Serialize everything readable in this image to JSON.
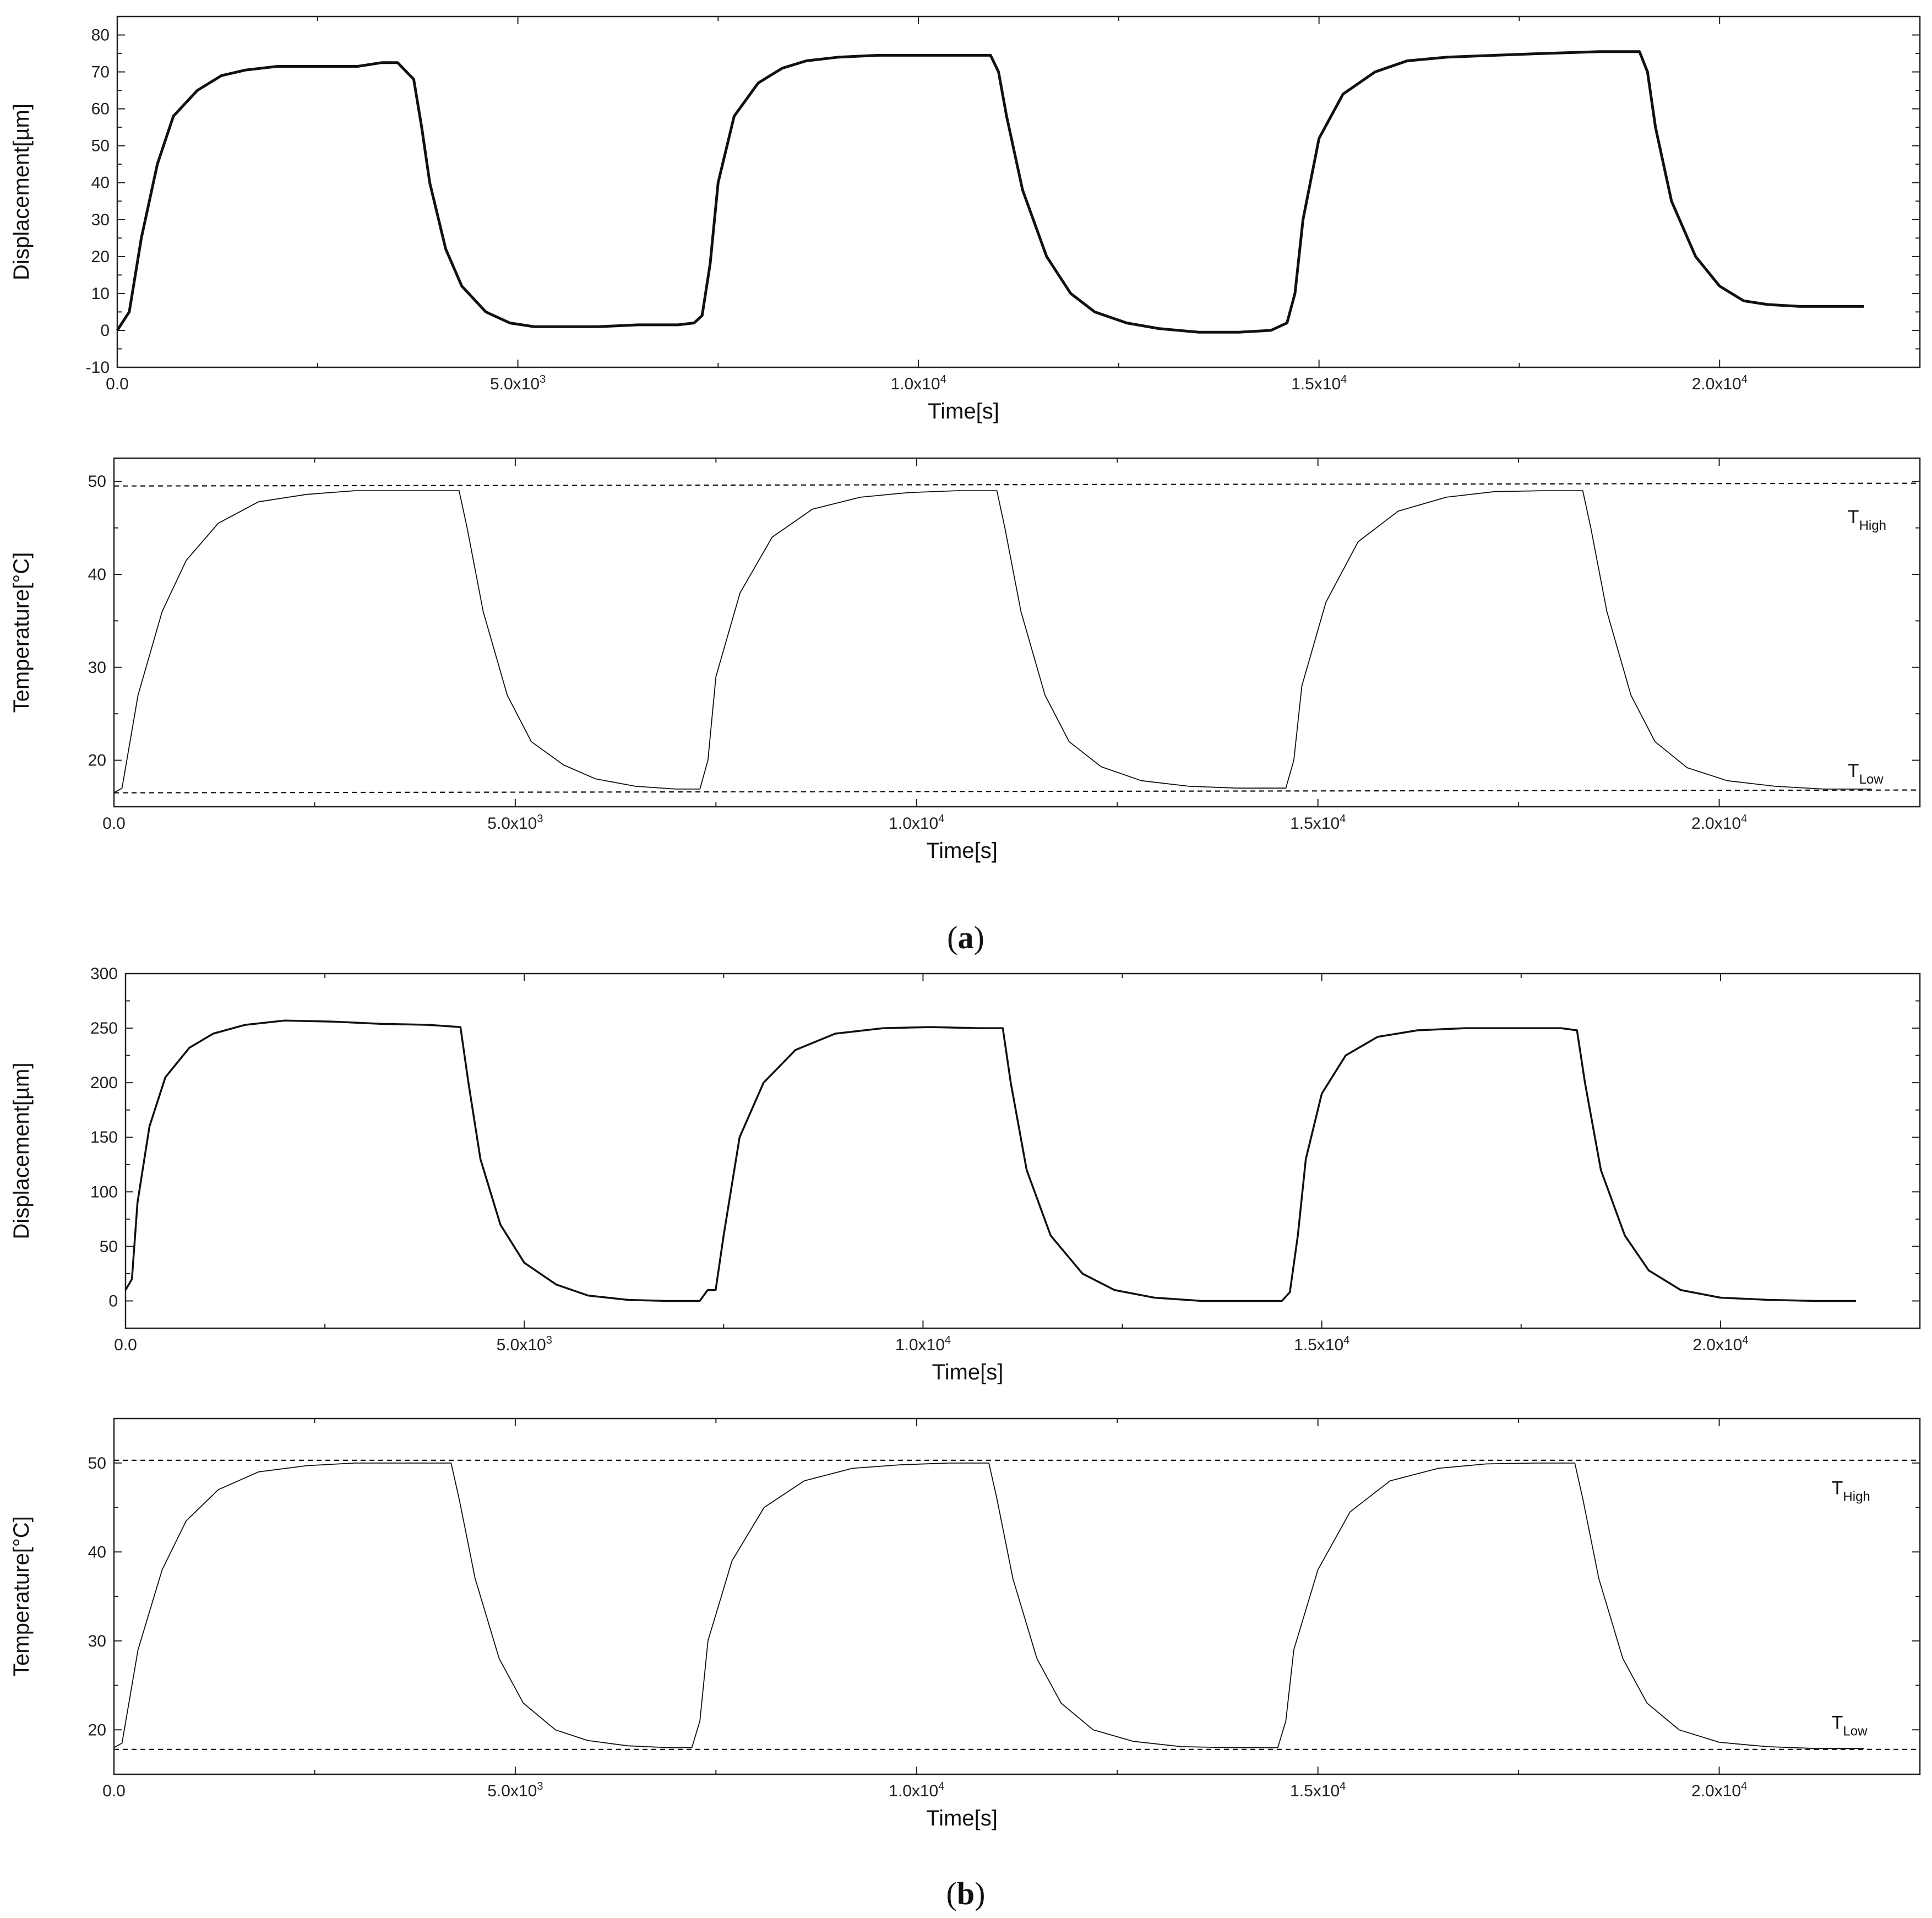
{
  "panel_labels": {
    "a_prefix": "(",
    "a_letter": "a",
    "a_suffix": ")",
    "b_prefix": "(",
    "b_letter": "b",
    "b_suffix": ")"
  },
  "colors": {
    "line": "#111111",
    "axis": "#222222",
    "background": "#ffffff"
  },
  "chart_data": [
    {
      "id": "a-displacement",
      "type": "line",
      "xlabel": "Time[s]",
      "ylabel": "Displacement[µm]",
      "xlim": [
        0,
        22500
      ],
      "ylim": [
        -10,
        85
      ],
      "xticks": [
        0,
        5000,
        10000,
        15000,
        20000
      ],
      "xtick_labels": [
        {
          "base": "0.0",
          "exp": ""
        },
        {
          "base": "5.0x10",
          "exp": "3"
        },
        {
          "base": "1.0x10",
          "exp": "4"
        },
        {
          "base": "1.5x10",
          "exp": "4"
        },
        {
          "base": "2.0x10",
          "exp": "4"
        }
      ],
      "yticks": [
        -10,
        0,
        10,
        20,
        30,
        40,
        50,
        60,
        70,
        80
      ],
      "ytick_labels": [
        "-10",
        "0",
        "10",
        "20",
        "30",
        "40",
        "50",
        "60",
        "70",
        "80"
      ],
      "grid": false,
      "series": [
        {
          "style": "solid-thick",
          "x": [
            0,
            150,
            300,
            500,
            700,
            1000,
            1300,
            1600,
            2000,
            2500,
            3000,
            3300,
            3500,
            3700,
            3800,
            3900,
            4100,
            4300,
            4600,
            4900,
            5200,
            5600,
            6000,
            6500,
            7000,
            7200,
            7300,
            7400,
            7500,
            7700,
            8000,
            8300,
            8600,
            9000,
            9500,
            10000,
            10500,
            10900,
            11000,
            11100,
            11300,
            11600,
            11900,
            12200,
            12600,
            13000,
            13500,
            14000,
            14400,
            14600,
            14700,
            14800,
            15000,
            15300,
            15700,
            16100,
            16600,
            17200,
            17800,
            18500,
            19000,
            19100,
            19200,
            19400,
            19700,
            20000,
            20300,
            20600,
            21000,
            21500,
            21800
          ],
          "y": [
            0,
            5,
            25,
            45,
            58,
            65,
            69,
            70.5,
            71.5,
            71.5,
            71.5,
            72.5,
            72.5,
            68,
            55,
            40,
            22,
            12,
            5,
            2,
            1,
            1,
            1,
            1.5,
            1.5,
            2,
            4,
            18,
            40,
            58,
            67,
            71,
            73,
            74,
            74.5,
            74.5,
            74.5,
            74.5,
            70,
            58,
            38,
            20,
            10,
            5,
            2,
            0.5,
            -0.5,
            -0.5,
            0,
            2,
            10,
            30,
            52,
            64,
            70,
            73,
            74,
            74.5,
            75,
            75.5,
            75.5,
            70,
            55,
            35,
            20,
            12,
            8,
            7,
            6.5,
            6.5,
            6.5
          ]
        }
      ]
    },
    {
      "id": "a-temperature",
      "type": "line",
      "xlabel": "Time[s]",
      "ylabel": "Temperature[°C]",
      "xlim": [
        0,
        22500
      ],
      "ylim": [
        15,
        52.5
      ],
      "xticks": [
        0,
        5000,
        10000,
        15000,
        20000
      ],
      "xtick_labels": [
        {
          "base": "0.0",
          "exp": ""
        },
        {
          "base": "5.0x10",
          "exp": "3"
        },
        {
          "base": "1.0x10",
          "exp": "4"
        },
        {
          "base": "1.5x10",
          "exp": "4"
        },
        {
          "base": "2.0x10",
          "exp": "4"
        }
      ],
      "yticks": [
        20,
        30,
        40,
        50
      ],
      "ytick_labels": [
        "20",
        "30",
        "40",
        "50"
      ],
      "grid": false,
      "series": [
        {
          "style": "solid-thin",
          "x": [
            0,
            100,
            300,
            600,
            900,
            1300,
            1800,
            2400,
            3000,
            3600,
            4300,
            4400,
            4600,
            4900,
            5200,
            5600,
            6000,
            6500,
            7000,
            7300,
            7400,
            7500,
            7800,
            8200,
            8700,
            9300,
            9900,
            10500,
            11000,
            11100,
            11300,
            11600,
            11900,
            12300,
            12800,
            13400,
            14000,
            14600,
            14700,
            14800,
            15100,
            15500,
            16000,
            16600,
            17200,
            17800,
            18300,
            18400,
            18600,
            18900,
            19200,
            19600,
            20100,
            20700,
            21300,
            21900
          ],
          "y": [
            16.5,
            17,
            27,
            36,
            41.5,
            45.5,
            47.8,
            48.6,
            49,
            49,
            49,
            45,
            36,
            27,
            22,
            19.5,
            18,
            17.2,
            16.9,
            16.9,
            20,
            29,
            38,
            44,
            47,
            48.3,
            48.8,
            49,
            49,
            45,
            36,
            27,
            22,
            19.3,
            17.8,
            17.2,
            17,
            17,
            20,
            28,
            37,
            43.5,
            46.8,
            48.3,
            48.9,
            49,
            49,
            45,
            36,
            27,
            22,
            19.2,
            17.8,
            17.2,
            16.9,
            16.9
          ]
        },
        {
          "style": "dashed",
          "x": [
            0,
            22500
          ],
          "y": [
            49.5,
            49.8
          ]
        },
        {
          "style": "dashed",
          "x": [
            0,
            22500
          ],
          "y": [
            16.5,
            16.8
          ]
        }
      ],
      "annotations": [
        {
          "main": "T",
          "sub": "High",
          "x": 21600,
          "y": 45.5
        },
        {
          "main": "T",
          "sub": "Low",
          "x": 21600,
          "y": 18.2
        }
      ]
    },
    {
      "id": "b-displacement",
      "type": "line",
      "xlabel": "Time[s]",
      "ylabel": "Displacement[µm]",
      "xlim": [
        0,
        22500
      ],
      "ylim": [
        -25,
        300
      ],
      "xticks": [
        0,
        5000,
        10000,
        15000,
        20000
      ],
      "xtick_labels": [
        {
          "base": "0.0",
          "exp": ""
        },
        {
          "base": "5.0x10",
          "exp": "3"
        },
        {
          "base": "1.0x10",
          "exp": "4"
        },
        {
          "base": "1.5x10",
          "exp": "4"
        },
        {
          "base": "2.0x10",
          "exp": "4"
        }
      ],
      "yticks": [
        0,
        50,
        100,
        150,
        200,
        250,
        300
      ],
      "ytick_labels": [
        "0",
        "50",
        "100",
        "150",
        "200",
        "250",
        "300"
      ],
      "grid": false,
      "series": [
        {
          "style": "solid-medium",
          "x": [
            0,
            80,
            150,
            300,
            500,
            800,
            1100,
            1500,
            2000,
            2600,
            3200,
            3800,
            4200,
            4300,
            4450,
            4700,
            5000,
            5400,
            5800,
            6300,
            6800,
            7200,
            7300,
            7400,
            7500,
            7700,
            8000,
            8400,
            8900,
            9500,
            10100,
            10700,
            11000,
            11100,
            11300,
            11600,
            12000,
            12400,
            12900,
            13500,
            14100,
            14500,
            14600,
            14700,
            14800,
            15000,
            15300,
            15700,
            16200,
            16800,
            17400,
            18000,
            18200,
            18300,
            18500,
            18800,
            19100,
            19500,
            20000,
            20600,
            21200,
            21700
          ],
          "y": [
            10,
            20,
            90,
            160,
            205,
            232,
            245,
            253,
            257,
            256,
            254,
            253,
            251,
            200,
            130,
            70,
            35,
            15,
            5,
            1,
            0,
            0,
            10,
            10,
            60,
            150,
            200,
            230,
            245,
            250,
            251,
            250,
            250,
            200,
            120,
            60,
            25,
            10,
            3,
            0,
            0,
            0,
            8,
            60,
            130,
            190,
            225,
            242,
            248,
            250,
            250,
            250,
            248,
            200,
            120,
            60,
            28,
            10,
            3,
            1,
            0,
            0
          ]
        }
      ]
    },
    {
      "id": "b-temperature",
      "type": "line",
      "xlabel": "Time[s]",
      "ylabel": "Temperature[°C]",
      "xlim": [
        0,
        22500
      ],
      "ylim": [
        15,
        55
      ],
      "xticks": [
        0,
        5000,
        10000,
        15000,
        20000
      ],
      "xtick_labels": [
        {
          "base": "0.0",
          "exp": ""
        },
        {
          "base": "5.0x10",
          "exp": "3"
        },
        {
          "base": "1.0x10",
          "exp": "4"
        },
        {
          "base": "1.5x10",
          "exp": "4"
        },
        {
          "base": "2.0x10",
          "exp": "4"
        }
      ],
      "yticks": [
        20,
        30,
        40,
        50
      ],
      "ytick_labels": [
        "20",
        "30",
        "40",
        "50"
      ],
      "grid": false,
      "series": [
        {
          "style": "solid-thin",
          "x": [
            0,
            100,
            300,
            600,
            900,
            1300,
            1800,
            2400,
            3000,
            3600,
            4200,
            4300,
            4500,
            4800,
            5100,
            5500,
            5900,
            6400,
            6900,
            7200,
            7300,
            7400,
            7700,
            8100,
            8600,
            9200,
            9800,
            10400,
            10900,
            11000,
            11200,
            11500,
            11800,
            12200,
            12700,
            13300,
            13900,
            14500,
            14600,
            14700,
            15000,
            15400,
            15900,
            16500,
            17100,
            17700,
            18200,
            18300,
            18500,
            18800,
            19100,
            19500,
            20000,
            20600,
            21200,
            21800
          ],
          "y": [
            18,
            18.5,
            29,
            38,
            43.5,
            47,
            49,
            49.7,
            50,
            50,
            50,
            46,
            37,
            28,
            23,
            20,
            18.8,
            18.2,
            18,
            18,
            21,
            30,
            39,
            45,
            48,
            49.4,
            49.8,
            50,
            50,
            46,
            37,
            28,
            23,
            20,
            18.7,
            18.1,
            18,
            18,
            21,
            29,
            38,
            44.5,
            48,
            49.4,
            49.9,
            50,
            50,
            46,
            37,
            28,
            23,
            20,
            18.6,
            18.1,
            17.9,
            17.9
          ]
        },
        {
          "style": "dashed",
          "x": [
            0,
            22500
          ],
          "y": [
            50.3,
            50.3
          ]
        },
        {
          "style": "dashed",
          "x": [
            0,
            22500
          ],
          "y": [
            17.8,
            17.8
          ]
        }
      ],
      "annotations": [
        {
          "main": "T",
          "sub": "High",
          "x": 21400,
          "y": 46.5
        },
        {
          "main": "T",
          "sub": "Low",
          "x": 21400,
          "y": 20.1
        }
      ]
    }
  ]
}
